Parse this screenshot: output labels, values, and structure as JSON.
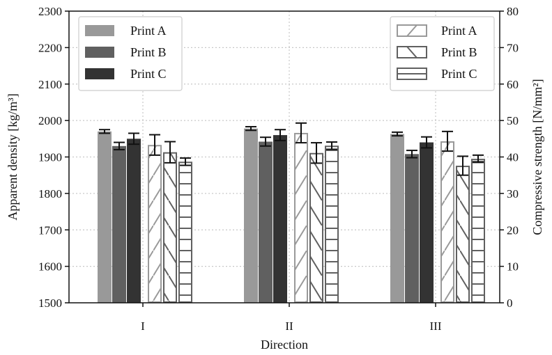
{
  "chart_data": {
    "type": "bar",
    "title": "",
    "xlabel": "Direction",
    "ylabel_left": "Apparent density [kg/m³]",
    "ylabel_right": "Compressive strength [N/mm²]",
    "categories": [
      "I",
      "II",
      "III"
    ],
    "ylim_left": [
      1500,
      2300
    ],
    "ylim_right": [
      0,
      80
    ],
    "yticks_left": [
      1500,
      1600,
      1700,
      1800,
      1900,
      2000,
      2100,
      2200,
      2300
    ],
    "yticks_right": [
      0,
      10,
      20,
      30,
      40,
      50,
      60,
      70,
      80
    ],
    "grid": true,
    "density_series": [
      {
        "name": "Print A",
        "color": "#999999",
        "values": [
          1970,
          1978,
          1963
        ],
        "errors": [
          5,
          5,
          5
        ]
      },
      {
        "name": "Print B",
        "color": "#606060",
        "values": [
          1930,
          1942,
          1908
        ],
        "errors": [
          10,
          12,
          10
        ]
      },
      {
        "name": "Print C",
        "color": "#333333",
        "values": [
          1950,
          1960,
          1940
        ],
        "errors": [
          15,
          15,
          15
        ]
      }
    ],
    "strength_series": [
      {
        "name": "Print A",
        "hatch": "diagonal",
        "color": "#999999",
        "values": [
          43.3,
          46.6,
          44.3
        ],
        "errors": [
          2.8,
          2.7,
          2.7
        ]
      },
      {
        "name": "Print B",
        "hatch": "back-diagonal",
        "color": "#606060",
        "values": [
          41.3,
          41.1,
          37.6
        ],
        "errors": [
          2.9,
          2.8,
          2.6
        ]
      },
      {
        "name": "Print C",
        "hatch": "horizontal",
        "color": "#606060",
        "values": [
          38.7,
          43.1,
          39.5
        ],
        "errors": [
          1.0,
          1.0,
          1.0
        ]
      }
    ],
    "legend_left": {
      "placement": "top-left",
      "entries": [
        "Print A",
        "Print B",
        "Print C"
      ]
    },
    "legend_right": {
      "placement": "top-right",
      "entries": [
        "Print A",
        "Print B",
        "Print C"
      ]
    }
  }
}
